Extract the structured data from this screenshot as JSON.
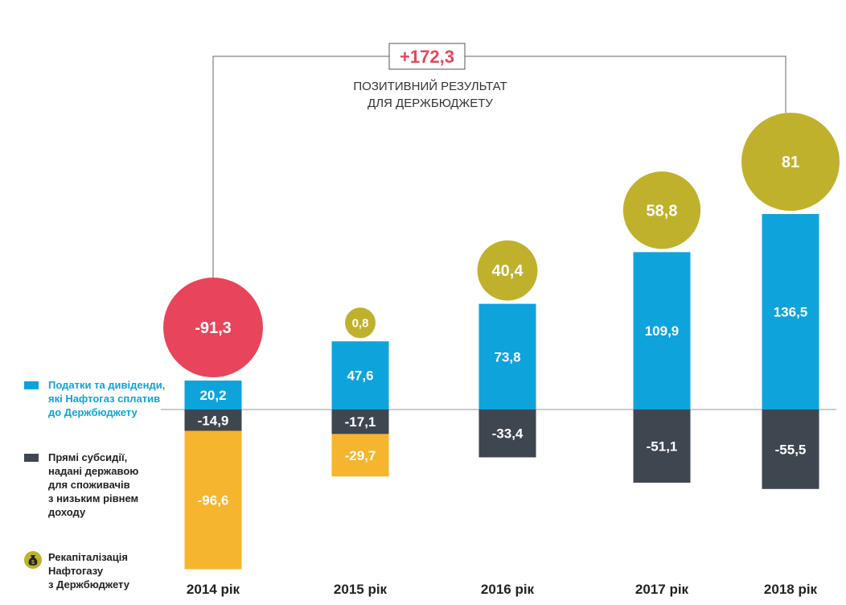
{
  "chart_data": {
    "type": "bar",
    "stacked": true,
    "categories": [
      "2014 рік",
      "2015 рік",
      "2016 рік",
      "2017 рік",
      "2018 рік"
    ],
    "series": [
      {
        "name": "Податки та дивіденди, які Нафтогаз сплатив до Держбюджету",
        "color": "#0fa3dc",
        "values": [
          20.2,
          47.6,
          73.8,
          109.9,
          136.5
        ],
        "labels": [
          "20,2",
          "47,6",
          "73,8",
          "109,9",
          "136,5"
        ]
      },
      {
        "name": "Прямі субсидії, надані державою для споживачів з низьким рівнем доходу",
        "color": "#3e4650",
        "values": [
          -14.9,
          -17.1,
          -33.4,
          -51.1,
          -55.5
        ],
        "labels": [
          "-14,9",
          "-17,1",
          "-33,4",
          "-51,1",
          "-55,5"
        ]
      },
      {
        "name": "Рекапіталізація Нафтогазу з Держбюджету",
        "color": "#f6b52e",
        "values": [
          -96.6,
          -29.7,
          0,
          0,
          0
        ],
        "labels": [
          "-96,6",
          "-29,7",
          "",
          "",
          ""
        ]
      }
    ],
    "net_results": {
      "values": [
        -91.3,
        0.8,
        40.4,
        58.8,
        81
      ],
      "labels": [
        "-91,3",
        "0,8",
        "40,4",
        "58,8",
        "81"
      ],
      "positive_color": "#c0b12d",
      "negative_color": "#e8455c"
    },
    "annotation": {
      "value_label": "+172,3",
      "text_line1": "ПОЗИТИВНИЙ РЕЗУЛЬТАТ",
      "text_line2": "ДЛЯ ДЕРЖБЮДЖЕТУ",
      "color": "#e8455c"
    }
  },
  "legend": {
    "items": [
      {
        "label": "Податки та дивіденди,\nякі Нафтогаз сплатив\nдо Держбюджету",
        "color": "#0fa3dc",
        "text_color": "#0fa3dc",
        "icon": "swatch"
      },
      {
        "label": "Прямі субсидії,\nнадані державою\nдля споживачів\nз низьким рівнем\nдоходу",
        "color": "#3e4650",
        "text_color": "#222222",
        "icon": "swatch"
      },
      {
        "label": "Рекапіталізація\nНафтогазу\nз Держбюджету",
        "color": "#c0b12d",
        "text_color": "#222222",
        "icon": "money-bag-icon"
      }
    ]
  }
}
